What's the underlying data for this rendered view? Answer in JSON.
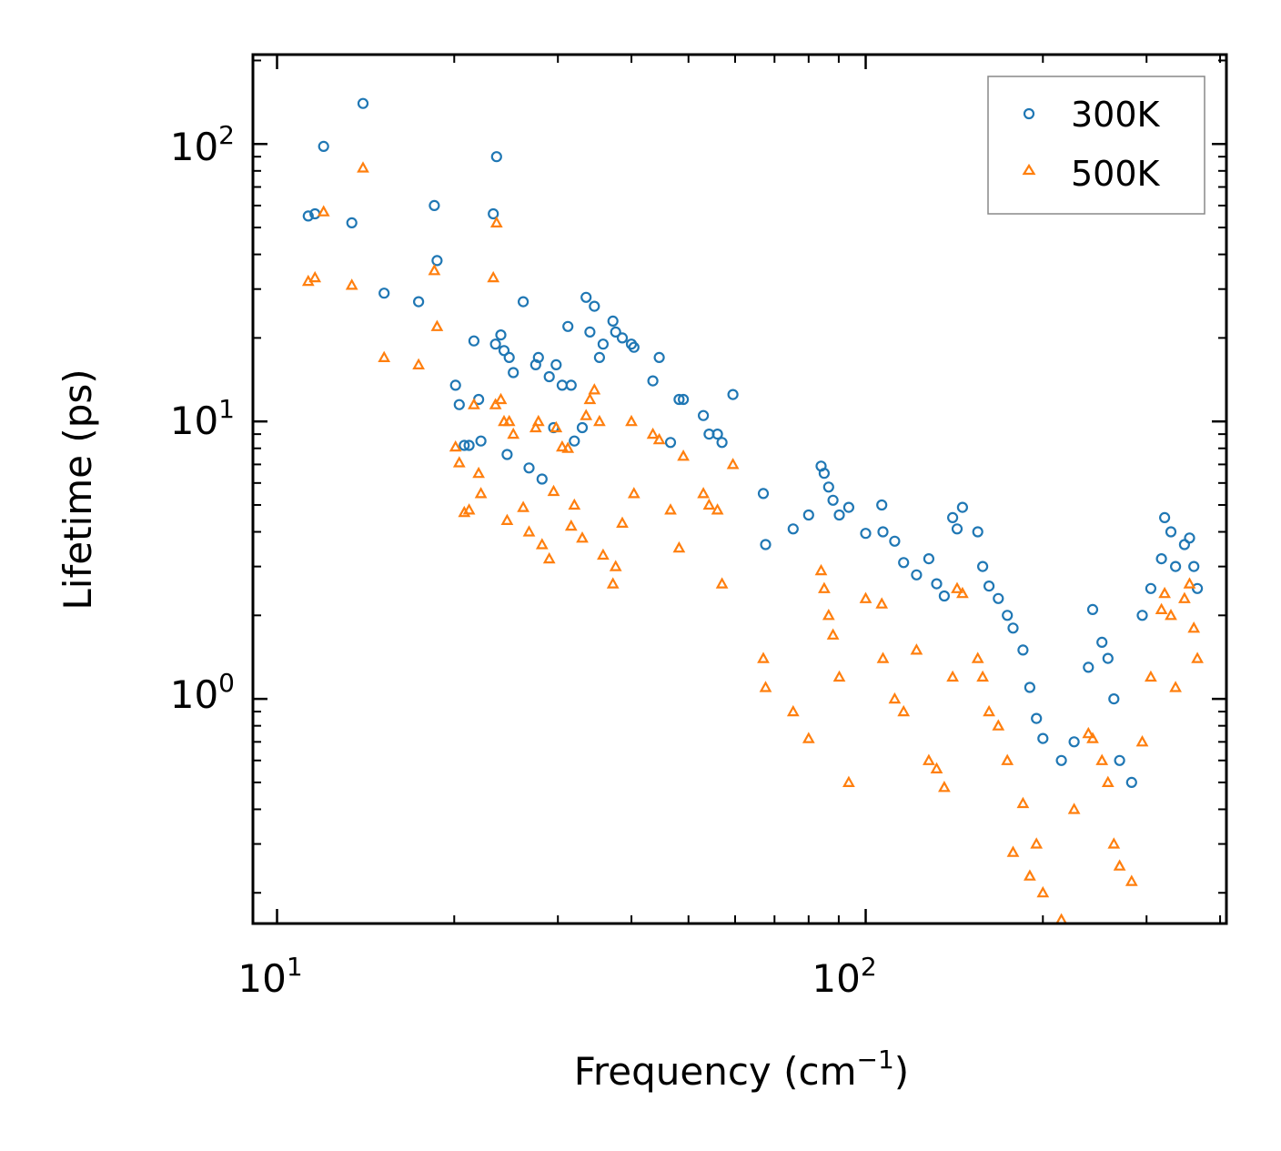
{
  "colors": {
    "series_300K": "#1f77b4",
    "series_500K": "#ff7f0e",
    "axis": "#000000",
    "legend_border": "#888888"
  },
  "chart_data": {
    "type": "scatter",
    "xscale": "log",
    "yscale": "log",
    "xlabel_main": "Frequency (cm",
    "xlabel_sup": "−1",
    "xlabel_end": ")",
    "ylabel": "Lifetime (ps)",
    "xlim": [
      9.1,
      410
    ],
    "ylim": [
      0.155,
      210
    ],
    "x_ticks": [
      {
        "base": "10",
        "exp": "1",
        "value": 10
      },
      {
        "base": "10",
        "exp": "2",
        "value": 100
      }
    ],
    "y_ticks": [
      {
        "base": "10",
        "exp": "0",
        "value": 1
      },
      {
        "base": "10",
        "exp": "1",
        "value": 10
      },
      {
        "base": "10",
        "exp": "2",
        "value": 100
      }
    ],
    "legend": {
      "position": "top-right",
      "entries": [
        "300K",
        "500K"
      ]
    },
    "series": [
      {
        "name": "300K",
        "marker": "circle",
        "points": [
          [
            11.3,
            55
          ],
          [
            11.6,
            56
          ],
          [
            12.0,
            98
          ],
          [
            13.4,
            52
          ],
          [
            14.0,
            140
          ],
          [
            15.2,
            29
          ],
          [
            17.4,
            27
          ],
          [
            18.5,
            60
          ],
          [
            18.7,
            38
          ],
          [
            20.1,
            13.5
          ],
          [
            20.4,
            11.5
          ],
          [
            20.8,
            8.2
          ],
          [
            21.2,
            8.2
          ],
          [
            21.6,
            19.5
          ],
          [
            22.0,
            12
          ],
          [
            22.2,
            8.5
          ],
          [
            23.3,
            56
          ],
          [
            23.6,
            90
          ],
          [
            23.5,
            19
          ],
          [
            24.0,
            20.5
          ],
          [
            24.3,
            18
          ],
          [
            24.6,
            7.6
          ],
          [
            24.8,
            17
          ],
          [
            25.2,
            15
          ],
          [
            26.2,
            27
          ],
          [
            26.8,
            6.8
          ],
          [
            27.5,
            16
          ],
          [
            27.8,
            17
          ],
          [
            28.2,
            6.2
          ],
          [
            29.0,
            14.5
          ],
          [
            29.5,
            9.5
          ],
          [
            29.8,
            16
          ],
          [
            30.5,
            13.5
          ],
          [
            31.2,
            22
          ],
          [
            31.6,
            13.5
          ],
          [
            32.0,
            8.5
          ],
          [
            33.0,
            9.5
          ],
          [
            33.5,
            28
          ],
          [
            34.0,
            21
          ],
          [
            34.6,
            26
          ],
          [
            35.3,
            17
          ],
          [
            35.8,
            19
          ],
          [
            37.2,
            23
          ],
          [
            37.6,
            21
          ],
          [
            38.6,
            20
          ],
          [
            40.0,
            19
          ],
          [
            40.4,
            18.5
          ],
          [
            43.5,
            14
          ],
          [
            44.6,
            17
          ],
          [
            46.6,
            8.4
          ],
          [
            48.2,
            12
          ],
          [
            49.0,
            12
          ],
          [
            53.0,
            10.5
          ],
          [
            54.2,
            9
          ],
          [
            56.0,
            9
          ],
          [
            57.0,
            8.4
          ],
          [
            59.5,
            12.5
          ],
          [
            67.0,
            5.5
          ],
          [
            67.6,
            3.6
          ],
          [
            75.3,
            4.1
          ],
          [
            80.0,
            4.6
          ],
          [
            84.0,
            6.9
          ],
          [
            85.0,
            6.5
          ],
          [
            86.5,
            5.8
          ],
          [
            88.0,
            5.2
          ],
          [
            90.2,
            4.6
          ],
          [
            93.6,
            4.9
          ],
          [
            100.0,
            3.95
          ],
          [
            106.5,
            5.0
          ],
          [
            107.0,
            4.0
          ],
          [
            112.0,
            3.7
          ],
          [
            116.0,
            3.1
          ],
          [
            122.0,
            2.8
          ],
          [
            128.0,
            3.2
          ],
          [
            132.0,
            2.6
          ],
          [
            136.0,
            2.35
          ],
          [
            140.5,
            4.5
          ],
          [
            143.0,
            4.1
          ],
          [
            146.0,
            4.9
          ],
          [
            155.0,
            4.0
          ],
          [
            158.0,
            3.0
          ],
          [
            162.0,
            2.55
          ],
          [
            168.0,
            2.3
          ],
          [
            174.0,
            2.0
          ],
          [
            178.0,
            1.8
          ],
          [
            185.0,
            1.5
          ],
          [
            190.0,
            1.1
          ],
          [
            195.0,
            0.85
          ],
          [
            200.0,
            0.72
          ],
          [
            215.0,
            0.6
          ],
          [
            226.0,
            0.7
          ],
          [
            239.0,
            1.3
          ],
          [
            243.0,
            2.1
          ],
          [
            252.0,
            1.6
          ],
          [
            258.0,
            1.4
          ],
          [
            264.0,
            1.0
          ],
          [
            270.0,
            0.6
          ],
          [
            283.0,
            0.5
          ],
          [
            295.0,
            2.0
          ],
          [
            305.0,
            2.5
          ],
          [
            318.0,
            3.2
          ],
          [
            322.0,
            4.5
          ],
          [
            330.0,
            4.0
          ],
          [
            336.0,
            3.0
          ],
          [
            348.0,
            3.6
          ],
          [
            355.0,
            3.8
          ],
          [
            361.0,
            3.0
          ],
          [
            366.0,
            2.5
          ]
        ]
      },
      {
        "name": "500K",
        "marker": "triangle",
        "points": [
          [
            11.3,
            32
          ],
          [
            11.6,
            33
          ],
          [
            12.0,
            57
          ],
          [
            13.4,
            31
          ],
          [
            14.0,
            82
          ],
          [
            15.2,
            17
          ],
          [
            17.4,
            16
          ],
          [
            18.5,
            35
          ],
          [
            18.7,
            22
          ],
          [
            20.1,
            8.1
          ],
          [
            20.4,
            7.1
          ],
          [
            20.8,
            4.7
          ],
          [
            21.2,
            4.8
          ],
          [
            21.6,
            11.5
          ],
          [
            22.0,
            6.5
          ],
          [
            22.2,
            5.5
          ],
          [
            23.3,
            33
          ],
          [
            23.6,
            52
          ],
          [
            23.5,
            11.5
          ],
          [
            24.0,
            12
          ],
          [
            24.3,
            10
          ],
          [
            24.6,
            4.4
          ],
          [
            24.8,
            10
          ],
          [
            25.2,
            9
          ],
          [
            26.2,
            4.9
          ],
          [
            26.8,
            4
          ],
          [
            27.5,
            9.5
          ],
          [
            27.8,
            10
          ],
          [
            28.2,
            3.6
          ],
          [
            29.0,
            3.2
          ],
          [
            29.5,
            5.6
          ],
          [
            29.8,
            9.5
          ],
          [
            30.5,
            8.1
          ],
          [
            31.2,
            8.0
          ],
          [
            31.6,
            4.2
          ],
          [
            32.0,
            5
          ],
          [
            33.0,
            3.8
          ],
          [
            33.5,
            10.5
          ],
          [
            34.0,
            12
          ],
          [
            34.6,
            13
          ],
          [
            35.3,
            10
          ],
          [
            35.8,
            3.3
          ],
          [
            37.2,
            2.6
          ],
          [
            37.6,
            3.0
          ],
          [
            38.6,
            4.3
          ],
          [
            40.0,
            10
          ],
          [
            40.4,
            5.5
          ],
          [
            43.5,
            9
          ],
          [
            44.6,
            8.6
          ],
          [
            46.6,
            4.8
          ],
          [
            48.2,
            3.5
          ],
          [
            49.0,
            7.5
          ],
          [
            53.0,
            5.5
          ],
          [
            54.2,
            5
          ],
          [
            56.0,
            4.8
          ],
          [
            57.0,
            2.6
          ],
          [
            59.5,
            7
          ],
          [
            67.0,
            1.4
          ],
          [
            67.6,
            1.1
          ],
          [
            75.3,
            0.9
          ],
          [
            80.0,
            0.72
          ],
          [
            84.0,
            2.9
          ],
          [
            85.0,
            2.5
          ],
          [
            86.5,
            2.0
          ],
          [
            88.0,
            1.7
          ],
          [
            90.2,
            1.2
          ],
          [
            93.6,
            0.5
          ],
          [
            100.0,
            2.3
          ],
          [
            106.5,
            2.2
          ],
          [
            107.0,
            1.4
          ],
          [
            112.0,
            1.0
          ],
          [
            116.0,
            0.9
          ],
          [
            122.0,
            1.5
          ],
          [
            128.0,
            0.6
          ],
          [
            132.0,
            0.56
          ],
          [
            136.0,
            0.48
          ],
          [
            140.5,
            1.2
          ],
          [
            143.0,
            2.5
          ],
          [
            146.0,
            2.4
          ],
          [
            155.0,
            1.4
          ],
          [
            158.0,
            1.2
          ],
          [
            162.0,
            0.9
          ],
          [
            168.0,
            0.8
          ],
          [
            174.0,
            0.6
          ],
          [
            178.0,
            0.28
          ],
          [
            185.0,
            0.42
          ],
          [
            190.0,
            0.23
          ],
          [
            195.0,
            0.3
          ],
          [
            200.0,
            0.2
          ],
          [
            215.0,
            0.16
          ],
          [
            226.0,
            0.4
          ],
          [
            239.0,
            0.75
          ],
          [
            243.0,
            0.72
          ],
          [
            252.0,
            0.6
          ],
          [
            258.0,
            0.5
          ],
          [
            264.0,
            0.3
          ],
          [
            270.0,
            0.25
          ],
          [
            283.0,
            0.22
          ],
          [
            295.0,
            0.7
          ],
          [
            305.0,
            1.2
          ],
          [
            318.0,
            2.1
          ],
          [
            322.0,
            2.4
          ],
          [
            330.0,
            2.0
          ],
          [
            336.0,
            1.1
          ],
          [
            348.0,
            2.3
          ],
          [
            355.0,
            2.6
          ],
          [
            361.0,
            1.8
          ],
          [
            366.0,
            1.4
          ]
        ]
      }
    ]
  }
}
